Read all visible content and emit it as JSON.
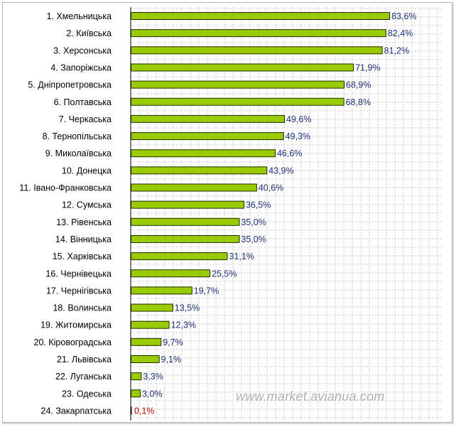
{
  "chart_data": {
    "type": "bar",
    "orientation": "horizontal",
    "categories": [
      "1. Хмельницька",
      "2. Київська",
      "3. Херсонська",
      "4. Запоріжська",
      "5. Дніпропетровська",
      "6. Полтавська",
      "7. Черкаська",
      "8. Тернопільська",
      "9. Миколаївська",
      "10. Донецка",
      "11. Івано-Франковська",
      "12. Сумська",
      "13. Рівенська",
      "14. Вінницька",
      "15. Харківська",
      "16. Чернівецька",
      "17. Чернігівська",
      "18. Волинська",
      "19. Житомирська",
      "20. Кіровоградська",
      "21. Львівська",
      "22. Луганська",
      "23. Одеська",
      "24. Закарпатська"
    ],
    "values": [
      83.6,
      82.4,
      81.2,
      71.9,
      68.9,
      68.8,
      49.6,
      49.3,
      46.6,
      43.9,
      40.6,
      36.5,
      35.0,
      35.0,
      31.1,
      25.5,
      19.7,
      13.5,
      12.3,
      9.7,
      9.1,
      3.3,
      3.0,
      0.1
    ],
    "value_labels": [
      "83,6%",
      "82,4%",
      "81,2%",
      "71,9%",
      "68,9%",
      "68,8%",
      "49,6%",
      "49,3%",
      "46,6%",
      "43,9%",
      "40,6%",
      "36,5%",
      "35,0%",
      "35,0%",
      "31,1%",
      "25,5%",
      "19,7%",
      "13,5%",
      "12,3%",
      "9,7%",
      "9,1%",
      "3,3%",
      "3,0%",
      "0,1%"
    ],
    "title": "",
    "xlabel": "",
    "ylabel": "",
    "xlim": [
      0,
      100
    ],
    "grid": true,
    "legend": "none",
    "colors": {
      "bar_fill": "#99cc00",
      "bar_stroke": "#1e2a00",
      "value_label": "#1f2f7a",
      "value_label_highlight": "#cc0000",
      "grid": "#c8c8c8",
      "axis": "#000000"
    },
    "highlight_index": 23
  },
  "watermark": "www.market.avianua.com"
}
